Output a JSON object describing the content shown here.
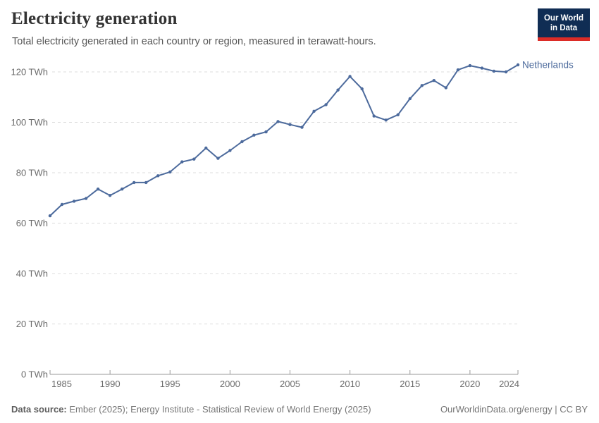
{
  "header": {
    "title": "Electricity generation",
    "subtitle": "Total electricity generated in each country or region, measured in terawatt-hours.",
    "logo": {
      "line1": "Our World",
      "line2": "in Data",
      "background_color": "#102d54",
      "accent_color": "#dc2c27"
    }
  },
  "chart_data": {
    "type": "line",
    "title": "Electricity generation",
    "subtitle": "Total electricity generated in each country or region, measured in terawatt-hours.",
    "unit": "TWh",
    "xlim": [
      1985,
      2024
    ],
    "ylim": [
      0,
      120
    ],
    "x_ticks": [
      1985,
      1990,
      1995,
      2000,
      2005,
      2010,
      2015,
      2020,
      2024
    ],
    "y_ticks": [
      0,
      20,
      40,
      60,
      80,
      100,
      120
    ],
    "y_tick_suffix": " TWh",
    "grid": "horizontal-dashed",
    "legend_position": "end-of-line-label",
    "series": [
      {
        "name": "Netherlands",
        "color": "#4C6A9C",
        "x": [
          1985,
          1986,
          1987,
          1988,
          1989,
          1990,
          1991,
          1992,
          1993,
          1994,
          1995,
          1996,
          1997,
          1998,
          1999,
          2000,
          2001,
          2002,
          2003,
          2004,
          2005,
          2006,
          2007,
          2008,
          2009,
          2010,
          2011,
          2012,
          2013,
          2014,
          2015,
          2016,
          2017,
          2018,
          2019,
          2020,
          2021,
          2022,
          2023,
          2024
        ],
        "values": [
          62.9,
          67.4,
          68.7,
          69.8,
          73.5,
          71.0,
          73.5,
          76.1,
          76.1,
          78.8,
          80.3,
          84.3,
          85.4,
          89.8,
          85.7,
          88.8,
          92.3,
          94.9,
          96.2,
          100.3,
          99.1,
          98.0,
          104.4,
          107.0,
          112.8,
          118.2,
          113.3,
          102.5,
          100.9,
          103.0,
          109.4,
          114.6,
          116.6,
          113.7,
          120.8,
          122.5,
          121.5,
          120.3,
          120.0,
          122.8
        ]
      }
    ]
  },
  "footer": {
    "datasource_label": "Data source:",
    "datasource_text": "Ember (2025); Energy Institute - Statistical Review of World Energy (2025)",
    "attribution": "OurWorldinData.org/energy | CC BY"
  }
}
